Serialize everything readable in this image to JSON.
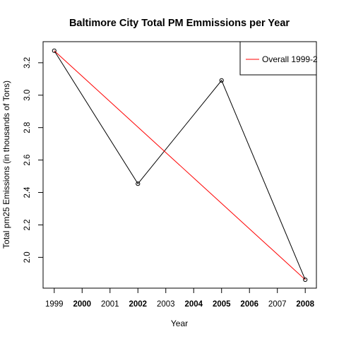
{
  "chart_data": {
    "type": "line",
    "title": "Baltimore City Total PM Emmissions per Year",
    "xlabel": "Year",
    "ylabel": "Total pm25 Emissions (in thousands of Tons)",
    "x_ticks": [
      "1999",
      "2000",
      "2001",
      "2002",
      "2003",
      "2004",
      "2005",
      "2006",
      "2007",
      "2008"
    ],
    "bold_x_ticks": [
      "2000",
      "2002",
      "2004",
      "2005",
      "2006",
      "2008"
    ],
    "y_ticks": [
      "2.0",
      "2.2",
      "2.4",
      "2.6",
      "2.8",
      "3.0",
      "3.2"
    ],
    "xlim": [
      1998.6,
      2008.4
    ],
    "ylim": [
      1.81,
      3.33
    ],
    "series": [
      {
        "color": "#000000",
        "markers": true,
        "x": [
          1999,
          2002,
          2005,
          2008
        ],
        "y": [
          3.274,
          2.454,
          3.091,
          1.862
        ]
      },
      {
        "name": "Overall 1999-2",
        "color": "#ff0000",
        "markers": false,
        "x": [
          1999,
          2008
        ],
        "y": [
          3.274,
          1.862
        ]
      }
    ],
    "legend": {
      "position": "top-right",
      "entries": [
        "Overall 1999-2"
      ]
    },
    "grid": false
  }
}
